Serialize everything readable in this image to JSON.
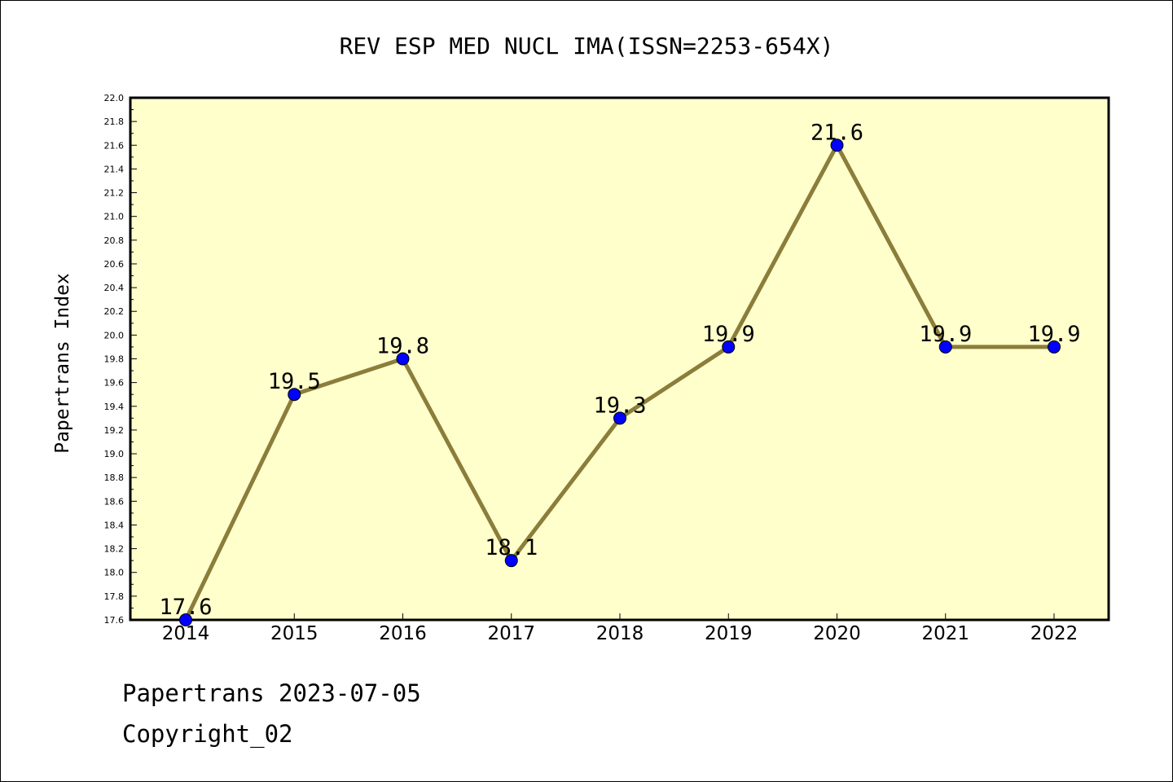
{
  "chart_data": {
    "type": "line",
    "title": "REV ESP MED NUCL IMA(ISSN=2253-654X)",
    "xlabel": "",
    "ylabel": "Papertrans Index",
    "x": [
      2014,
      2015,
      2016,
      2017,
      2018,
      2019,
      2020,
      2021,
      2022
    ],
    "x_tick_labels": [
      "2014",
      "2015",
      "2016",
      "2017",
      "2018",
      "2019",
      "2020",
      "2021",
      "2022"
    ],
    "series": [
      {
        "values": [
          17.6,
          19.5,
          19.8,
          18.1,
          19.3,
          19.9,
          21.6,
          19.9,
          19.9
        ],
        "labels": [
          "17.6",
          "19.5",
          "19.8",
          "18.1",
          "19.3",
          "19.9",
          "21.6",
          "19.9",
          "19.9"
        ]
      }
    ],
    "ylim": [
      17.6,
      22.0
    ],
    "y_ticks": [
      "17.6",
      "17.8",
      "18.0",
      "18.2",
      "18.4",
      "18.6",
      "18.8",
      "19.0",
      "19.2",
      "19.4",
      "19.6",
      "19.8",
      "20.0",
      "20.2",
      "20.4",
      "20.6",
      "20.8",
      "21.0",
      "21.2",
      "21.4",
      "21.6",
      "21.8",
      "22.0"
    ],
    "grid": false,
    "colors": {
      "plot_background": "#ffffcc",
      "line": "#8b7d3a",
      "marker": "#0000ff"
    }
  },
  "footer": {
    "line1": "Papertrans 2023-07-05",
    "line2": "Copyright_02"
  }
}
